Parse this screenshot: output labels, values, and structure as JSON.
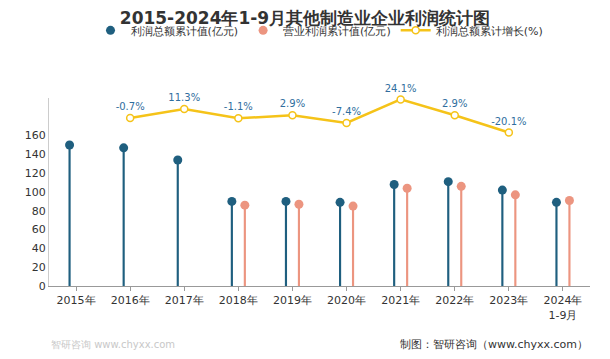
{
  "chart_data": {
    "type": "bar",
    "title": "2015-2024年1-9月其他制造业企业利润统计图",
    "categories": [
      "2015年",
      "2016年",
      "2017年",
      "2018年",
      "2019年",
      "2020年",
      "2021年",
      "2022年",
      "2023年",
      "2024年\n1-9月"
    ],
    "series": [
      {
        "name": "利润总额累计值(亿元)",
        "type": "lollipop",
        "color": "#1f5f7f",
        "values": [
          150,
          147,
          134,
          90,
          90,
          89,
          108,
          111,
          102,
          89
        ]
      },
      {
        "name": "营业利润累计值(亿元)",
        "type": "lollipop",
        "color": "#ec9580",
        "values": [
          null,
          null,
          null,
          86,
          87,
          85,
          104,
          106,
          97,
          91
        ]
      },
      {
        "name": "利润总额累计增长(%)",
        "type": "line",
        "axis": "y2",
        "color": "#f5c319",
        "marker": "circle",
        "data_labels": true,
        "values": [
          null,
          -0.7,
          11.3,
          -1.1,
          2.9,
          -7.4,
          24.1,
          2.9,
          -20.1,
          null
        ],
        "value_labels": [
          null,
          "-0.7%",
          "11.3%",
          "-1.1%",
          "2.9%",
          "-7.4%",
          "24.1%",
          "2.9%",
          "-20.1%",
          null
        ]
      }
    ],
    "ylim": [
      0,
      200
    ],
    "yticks": [
      0,
      20,
      40,
      60,
      80,
      100,
      120,
      140,
      160
    ],
    "y2lim": [
      -225,
      26
    ],
    "y2ticks": [],
    "grid": false,
    "legend": "top",
    "annotations": [
      "制图：智研咨询（www.chyxx.com）",
      "智研咨询 www.chyxx.com"
    ]
  }
}
